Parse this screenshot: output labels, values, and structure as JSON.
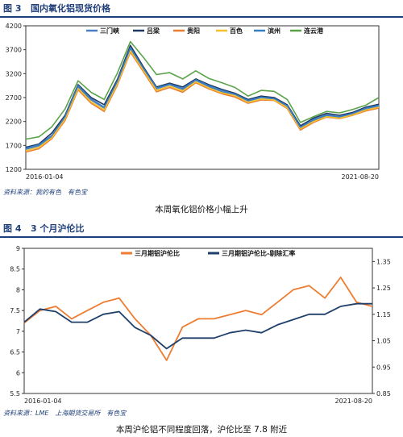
{
  "figure3": {
    "number": "图 3",
    "title": "国内氧化铝现货价格",
    "source": "资料来源：我的有色　有色宝",
    "caption": "本周氧化铝价格小幅上升"
  },
  "figure4": {
    "number": "图 4",
    "title": "3 个月沪伦比",
    "source": "资料来源：LME　上海期货交易所　有色宝",
    "caption": "本周沪伦铝不同程度回落，沪伦比至 7.8 附近"
  },
  "chart_data": [
    {
      "type": "line",
      "title": "国内氧化铝现货价格",
      "x": [
        "2016-01",
        "2016-04",
        "2016-07",
        "2016-10",
        "2017-01",
        "2017-04",
        "2017-07",
        "2017-09",
        "2017-10",
        "2017-12",
        "2018-02",
        "2018-04",
        "2018-05",
        "2018-07",
        "2018-09",
        "2018-11",
        "2019-01",
        "2019-04",
        "2019-07",
        "2019-10",
        "2020-01",
        "2020-04",
        "2020-07",
        "2020-10",
        "2021-01",
        "2021-04",
        "2021-06",
        "2021-08"
      ],
      "x_tick_labels": [
        "2016-01-04",
        "2021-08-20"
      ],
      "ylim": [
        1200,
        4200
      ],
      "yticks": [
        1200,
        1700,
        2200,
        2700,
        3200,
        3700,
        4200
      ],
      "grid": false,
      "legend_position": "top",
      "series": [
        {
          "name": "三门峡",
          "color": "#4a7fc1",
          "values": [
            1620,
            1690,
            1890,
            2280,
            2920,
            2650,
            2480,
            3020,
            3720,
            3300,
            2880,
            2970,
            2870,
            3060,
            2930,
            2820,
            2760,
            2630,
            2700,
            2670,
            2520,
            2070,
            2220,
            2320,
            2280,
            2360,
            2460,
            2520
          ]
        },
        {
          "name": "吕梁",
          "color": "#1f3864",
          "values": [
            1660,
            1730,
            1960,
            2330,
            2970,
            2700,
            2550,
            3080,
            3790,
            3340,
            2920,
            3000,
            2920,
            3090,
            2970,
            2870,
            2790,
            2660,
            2730,
            2700,
            2550,
            2110,
            2270,
            2370,
            2330,
            2390,
            2500,
            2560
          ]
        },
        {
          "name": "贵阳",
          "color": "#ed7d31",
          "values": [
            1560,
            1630,
            1840,
            2220,
            2860,
            2580,
            2410,
            2960,
            3650,
            3240,
            2820,
            2910,
            2810,
            3010,
            2880,
            2780,
            2710,
            2580,
            2650,
            2640,
            2470,
            2020,
            2180,
            2290,
            2260,
            2330,
            2420,
            2480
          ]
        },
        {
          "name": "百色",
          "color": "#f2c12e",
          "values": [
            1590,
            1660,
            1860,
            2250,
            2890,
            2610,
            2440,
            2990,
            3680,
            3270,
            2850,
            2940,
            2840,
            3030,
            2900,
            2800,
            2740,
            2600,
            2670,
            2650,
            2490,
            2050,
            2200,
            2300,
            2270,
            2340,
            2440,
            2500
          ]
        },
        {
          "name": "滨州",
          "color": "#3a7fc3",
          "values": [
            1640,
            1710,
            1910,
            2300,
            2950,
            2670,
            2500,
            3040,
            3740,
            3310,
            2900,
            2980,
            2890,
            3070,
            2950,
            2850,
            2770,
            2640,
            2710,
            2680,
            2530,
            2080,
            2240,
            2340,
            2300,
            2370,
            2480,
            2540
          ]
        },
        {
          "name": "连云港",
          "color": "#5ba34a",
          "values": [
            1830,
            1880,
            2090,
            2460,
            3050,
            2810,
            2660,
            3210,
            3870,
            3540,
            3180,
            3220,
            3090,
            3260,
            3100,
            3010,
            2910,
            2730,
            2850,
            2830,
            2660,
            2180,
            2300,
            2410,
            2380,
            2450,
            2540,
            2700
          ]
        }
      ]
    },
    {
      "type": "line",
      "title": "3 个月沪伦比",
      "x": [
        "2016-01",
        "2016-04",
        "2016-07",
        "2016-10",
        "2017-01",
        "2017-04",
        "2017-07",
        "2017-10",
        "2018-01",
        "2018-04",
        "2018-07",
        "2018-10",
        "2019-01",
        "2019-04",
        "2019-07",
        "2019-10",
        "2020-01",
        "2020-04",
        "2020-07",
        "2020-10",
        "2021-01",
        "2021-04",
        "2021-08"
      ],
      "x_tick_labels": [
        "2016-01-04",
        "2021-08-20"
      ],
      "ylim": [
        5.5,
        9
      ],
      "yticks": [
        5.5,
        6,
        6.5,
        7,
        7.5,
        8,
        8.5,
        9
      ],
      "y2lim": [
        0.85,
        1.4
      ],
      "y2ticks": [
        0.85,
        0.95,
        1.05,
        1.15,
        1.25,
        1.35
      ],
      "grid": false,
      "legend_position": "top",
      "series": [
        {
          "name": "三月期铝沪伦比",
          "axis": "left",
          "color": "#ed7d31",
          "values": [
            7.2,
            7.5,
            7.6,
            7.3,
            7.5,
            7.7,
            7.8,
            7.3,
            6.9,
            6.3,
            7.1,
            7.3,
            7.3,
            7.4,
            7.5,
            7.4,
            7.7,
            8.0,
            8.1,
            7.8,
            8.3,
            7.7,
            7.6
          ]
        },
        {
          "name": "三月期铝沪伦比-剔除汇率",
          "axis": "right",
          "color": "#1f3f6b",
          "values": [
            1.12,
            1.17,
            1.16,
            1.12,
            1.12,
            1.15,
            1.16,
            1.1,
            1.07,
            1.02,
            1.06,
            1.06,
            1.06,
            1.08,
            1.09,
            1.08,
            1.11,
            1.13,
            1.15,
            1.15,
            1.18,
            1.19,
            1.19
          ]
        }
      ]
    }
  ]
}
